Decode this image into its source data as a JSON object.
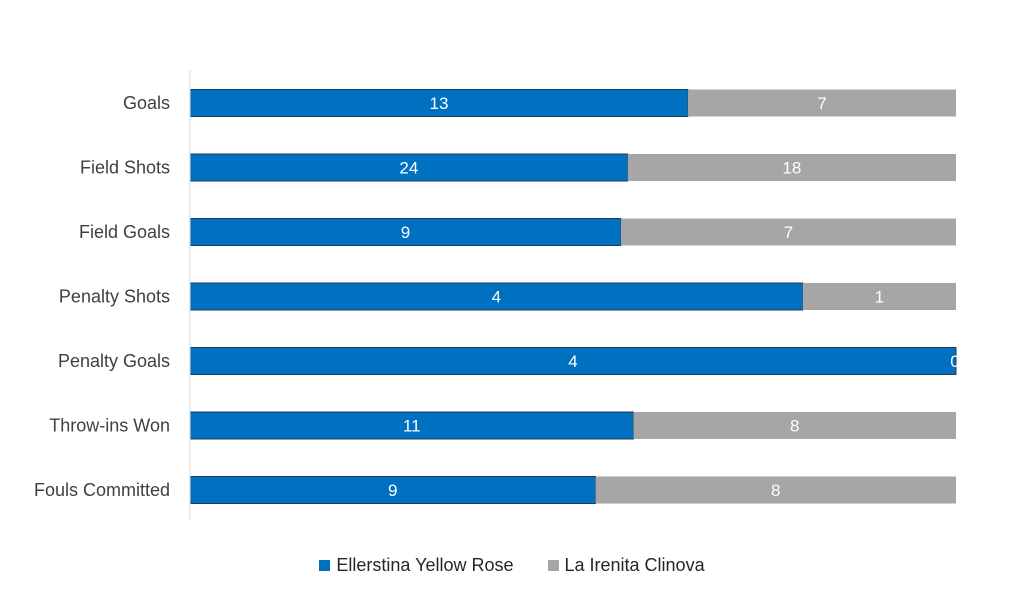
{
  "chart_data": {
    "type": "bar",
    "orientation": "horizontal",
    "stacked": "100%",
    "categories": [
      "Goals",
      "Field Shots",
      "Field Goals",
      "Penalty Shots",
      "Penalty Goals",
      "Throw-ins Won",
      "Fouls Committed"
    ],
    "series": [
      {
        "name": "Ellerstina Yellow Rose",
        "values": [
          13,
          24,
          9,
          4,
          4,
          11,
          9
        ],
        "color": "#0070C0"
      },
      {
        "name": "La Irenita Clinova",
        "values": [
          7,
          18,
          7,
          1,
          0,
          8,
          8
        ],
        "color": "#A6A6A6"
      }
    ],
    "grid": false,
    "legend_position": "bottom"
  }
}
